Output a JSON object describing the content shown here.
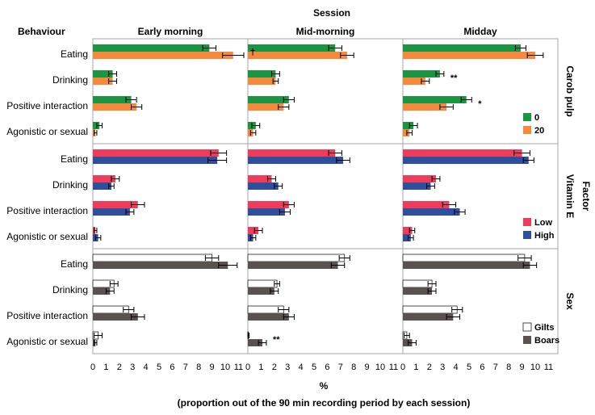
{
  "chart_data": {
    "type": "bar",
    "orientation": "horizontal",
    "title": "Session",
    "row_header": "Behaviour",
    "right_axis_label": "Factor",
    "xlabel": "%",
    "xlabel_note": "(proportion out of the 90 min recording period by each session)",
    "xlim": [
      0,
      11
    ],
    "tick_labels": [
      "0",
      "1",
      "2",
      "3",
      "4",
      "5",
      "6",
      "7",
      "8",
      "9",
      "10",
      "11"
    ],
    "grid": false,
    "categories": [
      "Eating",
      "Drinking",
      "Positive interaction",
      "Agonistic or sexual"
    ],
    "sessions": [
      "Early morning",
      "Mid-morning",
      "Midday"
    ],
    "factors": [
      {
        "name": "Carob pulp",
        "legend_position": "bottom-right",
        "series": [
          {
            "name": "0",
            "color": "#1a9641",
            "values": [
              [
                8.8,
                1.5,
                2.9,
                0.5
              ],
              [
                6.6,
                2.1,
                3.1,
                0.6
              ],
              [
                8.9,
                2.8,
                4.8,
                0.8
              ]
            ],
            "errors": [
              [
                0.5,
                0.3,
                0.4,
                0.2
              ],
              [
                0.5,
                0.3,
                0.4,
                0.3
              ],
              [
                0.4,
                0.3,
                0.4,
                0.3
              ]
            ]
          },
          {
            "name": "20",
            "color": "#f58a3c",
            "values": [
              [
                10.6,
                1.5,
                3.3,
                0.2
              ],
              [
                7.5,
                2.1,
                2.7,
                0.4
              ],
              [
                10.0,
                1.7,
                3.3,
                0.5
              ]
            ],
            "errors": [
              [
                0.8,
                0.3,
                0.4,
                0.1
              ],
              [
                0.5,
                0.2,
                0.4,
                0.2
              ],
              [
                0.6,
                0.3,
                0.5,
                0.2
              ]
            ]
          }
        ],
        "annotations": [
          {
            "text": "†",
            "session": 0,
            "category": 0
          },
          {
            "text": "**",
            "session": 2,
            "category": 1
          },
          {
            "text": "*",
            "session": 2,
            "category": 2
          }
        ]
      },
      {
        "name": "Vitamin E",
        "legend_position": "bottom-right",
        "series": [
          {
            "name": "Low",
            "color": "#f03c5a",
            "values": [
              [
                9.5,
                1.7,
                3.4,
                0.2
              ],
              [
                6.6,
                1.8,
                3.1,
                0.8
              ],
              [
                9.0,
                2.5,
                3.5,
                0.7
              ]
            ],
            "errors": [
              [
                0.6,
                0.3,
                0.5,
                0.1
              ],
              [
                0.5,
                0.3,
                0.4,
                0.3
              ],
              [
                0.6,
                0.3,
                0.5,
                0.2
              ]
            ]
          },
          {
            "name": "High",
            "color": "#2e4f9e",
            "values": [
              [
                9.4,
                1.4,
                2.8,
                0.4
              ],
              [
                7.2,
                2.3,
                2.8,
                0.4
              ],
              [
                9.5,
                2.1,
                4.3,
                0.6
              ]
            ],
            "errors": [
              [
                0.7,
                0.2,
                0.3,
                0.2
              ],
              [
                0.5,
                0.3,
                0.4,
                0.2
              ],
              [
                0.4,
                0.3,
                0.4,
                0.2
              ]
            ]
          }
        ],
        "annotations": []
      },
      {
        "name": "Sex",
        "legend_position": "bottom-right",
        "series": [
          {
            "name": "Gilts",
            "color": "#ffffff",
            "values": [
              [
                9.0,
                1.6,
                2.7,
                0.4
              ],
              [
                7.3,
                2.2,
                2.7,
                0.0
              ],
              [
                9.2,
                2.2,
                4.1,
                0.3
              ]
            ],
            "errors": [
              [
                0.5,
                0.3,
                0.4,
                0.3
              ],
              [
                0.4,
                0.2,
                0.4,
                0.1
              ],
              [
                0.5,
                0.3,
                0.4,
                0.2
              ]
            ]
          },
          {
            "name": "Boars",
            "color": "#595250",
            "values": [
              [
                10.2,
                1.3,
                3.4,
                0.2
              ],
              [
                6.8,
                2.0,
                3.1,
                1.1
              ],
              [
                9.6,
                2.2,
                3.8,
                0.7
              ]
            ],
            "errors": [
              [
                0.7,
                0.3,
                0.5,
                0.1
              ],
              [
                0.5,
                0.3,
                0.4,
                0.3
              ],
              [
                0.5,
                0.3,
                0.5,
                0.3
              ]
            ]
          }
        ],
        "annotations": [
          {
            "text": "**",
            "session": 1,
            "category": 3
          }
        ]
      }
    ]
  }
}
